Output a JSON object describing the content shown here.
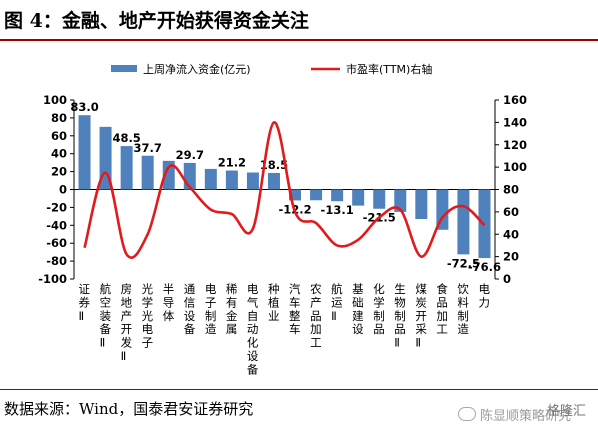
{
  "header": {
    "title": "图 4：金融、地产开始获得资金关注"
  },
  "footer": {
    "source": "数据来源：Wind，国泰君安证券研究"
  },
  "watermark": {
    "text": "陈显顺策略研究",
    "logo": "格隆汇"
  },
  "colors": {
    "bar": "#4f81bd",
    "line": "#e31a1c",
    "rule": "#a00000"
  },
  "chart_data": {
    "type": "bar",
    "categories": [
      "证券Ⅱ",
      "航空装备Ⅱ",
      "房地产开发Ⅱ",
      "光学光电子",
      "半导体",
      "通信设备",
      "电子制造",
      "稀有金属",
      "电气自动化设备",
      "种植业",
      "汽车整车",
      "农产品加工",
      "航运Ⅱ",
      "基础建设",
      "化学制品",
      "生物制品Ⅱ",
      "煤炭开采Ⅱ",
      "食品加工",
      "饮料制造",
      "电力"
    ],
    "series": [
      {
        "name": "上周净流入资金(亿元)",
        "type": "bar",
        "axis": "left",
        "values": [
          83.0,
          70,
          48.5,
          37.7,
          32,
          29.7,
          23,
          21.2,
          19,
          18.5,
          -12.2,
          -12,
          -13.1,
          -18,
          -21.5,
          -25,
          -33,
          -45,
          -72.5,
          -76.6
        ]
      },
      {
        "name": "市盈率(TTM)右轴",
        "type": "line",
        "axis": "right",
        "values": [
          28,
          95,
          22,
          40,
          100,
          82,
          62,
          58,
          45,
          140,
          60,
          50,
          30,
          35,
          55,
          62,
          20,
          55,
          65,
          48
        ]
      }
    ],
    "data_labels": {
      "0": "83.0",
      "2": "48.5",
      "3": "37.7",
      "5": "29.7",
      "7": "21.2",
      "9": "18.5",
      "10": "-12.2",
      "12": "-13.1",
      "14": "-21.5",
      "18": "-72.5",
      "19": "-76.6"
    },
    "left_axis": {
      "ylim": [
        -100,
        100
      ],
      "ticks": [
        100,
        80,
        60,
        40,
        20,
        0,
        -20,
        -40,
        -60,
        -80,
        -100
      ]
    },
    "right_axis": {
      "ylim": [
        0,
        160
      ],
      "ticks": [
        160,
        140,
        120,
        100,
        80,
        60,
        40,
        20,
        0
      ]
    },
    "legend": {
      "position": "top"
    },
    "grid": false
  }
}
